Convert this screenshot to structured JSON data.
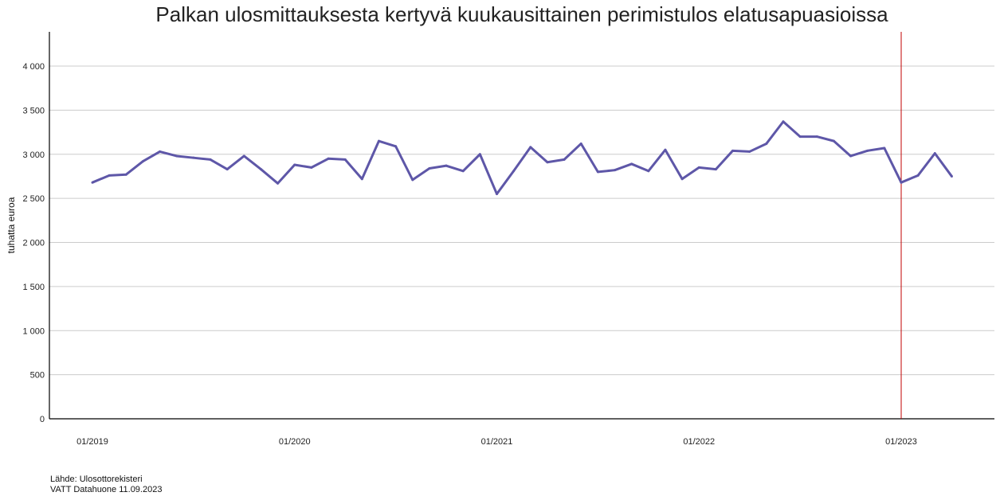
{
  "chart_data": {
    "type": "line",
    "title": "Palkan ulosmittauksesta kertyvä kuukausittainen perimistulos elatusapuasioissa",
    "xlabel": "",
    "ylabel": "tuhatta euroa",
    "ylim": [
      0,
      4000
    ],
    "yticks": [
      0,
      500,
      1000,
      1500,
      2000,
      2500,
      3000,
      3500,
      4000
    ],
    "ytick_labels": [
      "0",
      "500",
      "1 000",
      "1 500",
      "2 000",
      "2 500",
      "3 000",
      "3 500",
      "4 000"
    ],
    "xtick_labels": [
      "01/2019",
      "01/2020",
      "01/2021",
      "01/2022",
      "01/2023"
    ],
    "x_start": "01/2019",
    "x_end": "04/2023",
    "grid": "horizontal",
    "vline_at": "01/2023",
    "colors": {
      "line": "#5e57a8",
      "vline": "#c00000",
      "grid": "#cccccc"
    },
    "series": [
      {
        "values": [
          2680,
          2760,
          2770,
          2920,
          3030,
          2980,
          2960,
          2940,
          2830,
          2980,
          2830,
          2670,
          2880,
          2850,
          2950,
          2940,
          2720,
          3150,
          3090,
          2710,
          2840,
          2870,
          2810,
          3000,
          2550,
          2810,
          3080,
          2910,
          2940,
          3120,
          2800,
          2820,
          2890,
          2810,
          3050,
          2720,
          2850,
          2830,
          3040,
          3030,
          3120,
          3370,
          3200,
          3200,
          3150,
          2980,
          3040,
          3070,
          2680,
          2760,
          3010,
          2750
        ]
      }
    ]
  },
  "footer": {
    "source": "Lähde: Ulosottorekisteri",
    "credit": "VATT Datahuone 11.09.2023"
  }
}
